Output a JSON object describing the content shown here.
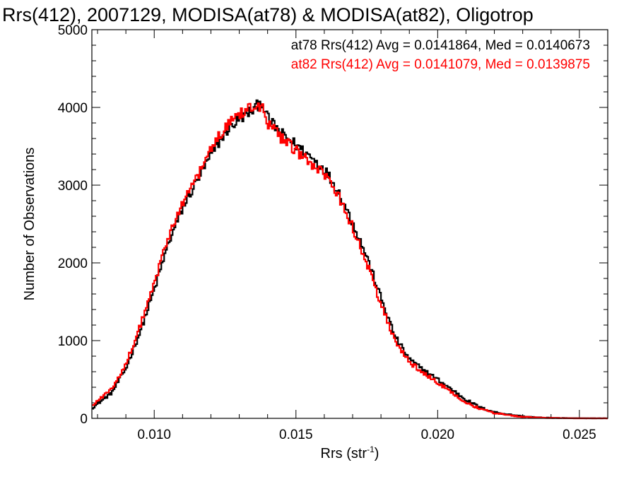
{
  "colors": {
    "at78": "#000000",
    "at82": "#ff0000",
    "background": "#ffffff"
  },
  "chart_data": {
    "type": "histogram",
    "title": "Rrs(412), 2007129, MODISA(at78) & MODISA(at82), Oligotrop",
    "xlabel_main": "Rrs (str",
    "xlabel_sup": "-1",
    "xlabel_tail": ")",
    "ylabel": "Number of Observations",
    "xlim": [
      0.0078,
      0.026
    ],
    "ylim": [
      0,
      5000
    ],
    "x_ticks": [
      0.01,
      0.015,
      0.02,
      0.025
    ],
    "x_tick_labels": [
      "0.010",
      "0.015",
      "0.020",
      "0.025"
    ],
    "y_ticks": [
      0,
      1000,
      2000,
      3000,
      4000,
      5000
    ],
    "y_tick_labels": [
      "0",
      "1000",
      "2000",
      "3000",
      "4000",
      "5000"
    ],
    "x_minor_step": 0.001,
    "y_minor_step": 200,
    "grid": false,
    "series": [
      {
        "name": "at78",
        "color": "#000000",
        "stats_text": "at78 Rrs(412) Avg = 0.0141864, Med = 0.0140673",
        "points": [
          [
            0.0078,
            130
          ],
          [
            0.0085,
            330
          ],
          [
            0.009,
            640
          ],
          [
            0.0095,
            1110
          ],
          [
            0.01,
            1650
          ],
          [
            0.0105,
            2250
          ],
          [
            0.011,
            2700
          ],
          [
            0.0115,
            3050
          ],
          [
            0.012,
            3380
          ],
          [
            0.0125,
            3680
          ],
          [
            0.013,
            3850
          ],
          [
            0.0135,
            3970
          ],
          [
            0.0138,
            4080
          ],
          [
            0.014,
            3860
          ],
          [
            0.0145,
            3660
          ],
          [
            0.015,
            3520
          ],
          [
            0.0155,
            3370
          ],
          [
            0.016,
            3210
          ],
          [
            0.0165,
            2920
          ],
          [
            0.017,
            2520
          ],
          [
            0.0175,
            2080
          ],
          [
            0.018,
            1550
          ],
          [
            0.0185,
            1050
          ],
          [
            0.019,
            760
          ],
          [
            0.0195,
            620
          ],
          [
            0.02,
            500
          ],
          [
            0.0205,
            370
          ],
          [
            0.021,
            240
          ],
          [
            0.0215,
            140
          ],
          [
            0.022,
            80
          ],
          [
            0.0225,
            50
          ],
          [
            0.023,
            25
          ],
          [
            0.0235,
            12
          ],
          [
            0.024,
            6
          ],
          [
            0.0245,
            3
          ],
          [
            0.025,
            1
          ],
          [
            0.026,
            0
          ]
        ]
      },
      {
        "name": "at82",
        "color": "#ff0000",
        "stats_text": "at82 Rrs(412) Avg = 0.0141079, Med = 0.0139875",
        "points": [
          [
            0.0078,
            160
          ],
          [
            0.0085,
            380
          ],
          [
            0.009,
            700
          ],
          [
            0.0095,
            1180
          ],
          [
            0.01,
            1730
          ],
          [
            0.0105,
            2330
          ],
          [
            0.011,
            2780
          ],
          [
            0.0115,
            3100
          ],
          [
            0.012,
            3450
          ],
          [
            0.0125,
            3760
          ],
          [
            0.013,
            3920
          ],
          [
            0.0135,
            4030
          ],
          [
            0.0138,
            4020
          ],
          [
            0.014,
            3800
          ],
          [
            0.0145,
            3600
          ],
          [
            0.015,
            3440
          ],
          [
            0.0155,
            3280
          ],
          [
            0.016,
            3130
          ],
          [
            0.0165,
            2860
          ],
          [
            0.017,
            2460
          ],
          [
            0.0175,
            2000
          ],
          [
            0.018,
            1470
          ],
          [
            0.0185,
            990
          ],
          [
            0.019,
            720
          ],
          [
            0.0195,
            580
          ],
          [
            0.02,
            460
          ],
          [
            0.0205,
            330
          ],
          [
            0.021,
            210
          ],
          [
            0.0215,
            120
          ],
          [
            0.022,
            70
          ],
          [
            0.0225,
            40
          ],
          [
            0.023,
            20
          ],
          [
            0.0235,
            10
          ],
          [
            0.024,
            5
          ],
          [
            0.0245,
            2
          ],
          [
            0.025,
            1
          ],
          [
            0.026,
            0
          ]
        ]
      }
    ]
  }
}
